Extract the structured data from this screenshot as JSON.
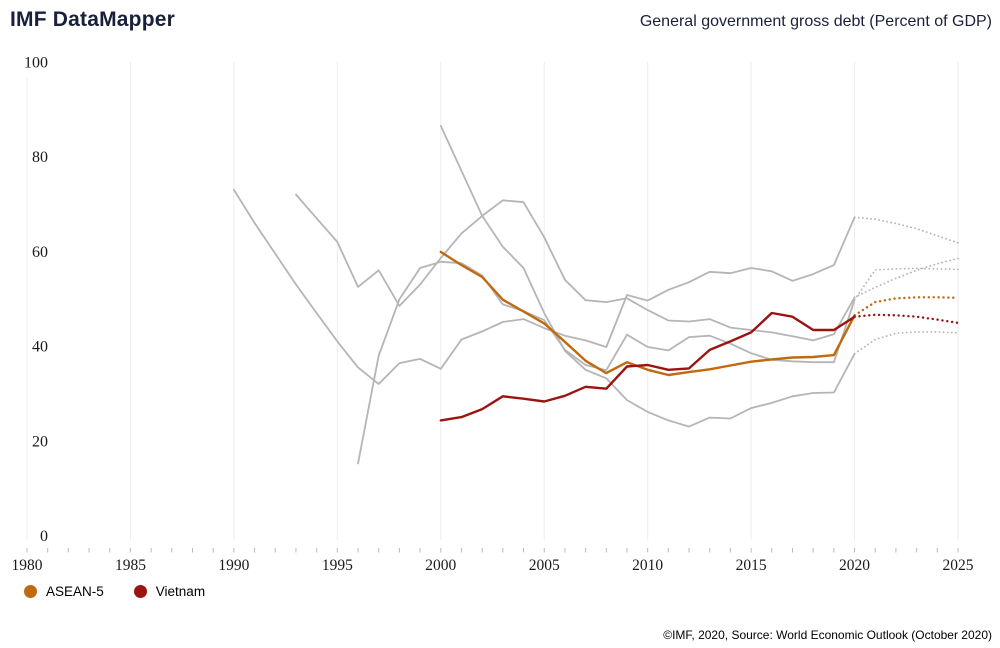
{
  "header": {
    "app_title": "IMF DataMapper"
  },
  "footer": {
    "attribution": "©IMF, 2020, Source: World Economic Outlook (October 2020)"
  },
  "chart_data": {
    "type": "line",
    "title": "General government gross debt (Percent of GDP)",
    "xlabel": "",
    "ylabel": "",
    "x_range": [
      1980,
      2025
    ],
    "y_range": [
      0,
      100
    ],
    "x_ticks": [
      1980,
      1985,
      1990,
      1995,
      2000,
      2005,
      2010,
      2015,
      2020,
      2025
    ],
    "y_ticks": [
      0,
      20,
      40,
      60,
      80,
      100
    ],
    "x_minor_tick_step": 1,
    "grid": "vertical-only",
    "projection_start": 2020,
    "projection_style": "dotted",
    "legend_position": "bottom-left",
    "colors": {
      "grid": "#ededee",
      "tick": "#b9b9b9",
      "axis_text": "#1a1a1a",
      "comparator_gray": "#b5b5b7"
    },
    "series": [
      {
        "name": "comparator-1",
        "highlighted": false,
        "color": "#b5b5b7",
        "start_year": 1990,
        "values": [
          73,
          66,
          59.5,
          53,
          47,
          41,
          35.5,
          32,
          36.4,
          37.3,
          35.2,
          41.4,
          43.1,
          45.1,
          45.7,
          43.8,
          42.2,
          41.2,
          39.8,
          50.8,
          49.6,
          51.9,
          53.5,
          55.7,
          55.4,
          56.5,
          55.8,
          53.8,
          55.2,
          57.1,
          67.2
        ],
        "projection": [
          67.2,
          66.8,
          65.9,
          64.8,
          63.3,
          61.8
        ]
      },
      {
        "name": "comparator-2",
        "highlighted": false,
        "color": "#b5b5b7",
        "start_year": 1993,
        "values": [
          72,
          67,
          62,
          52.5,
          56,
          48.5,
          53,
          58.6,
          63.8,
          67.5,
          70.8,
          70.4,
          63,
          54,
          49.7,
          49.3,
          50.1,
          47.6,
          45.4,
          45.2,
          45.7,
          43.9,
          43.4,
          42.9,
          42.1,
          41.2,
          42.5,
          50.3
        ],
        "projection": [
          50.3,
          52.4,
          54.3,
          56.0,
          57.4,
          58.5
        ]
      },
      {
        "name": "comparator-3",
        "highlighted": false,
        "color": "#b5b5b7",
        "start_year": 1996,
        "values": [
          15.2,
          38,
          49.9,
          56.5,
          57.8,
          57.5,
          54.9,
          48.8,
          47.4,
          45.5,
          39.2,
          36.0,
          34.9,
          42.4,
          39.8,
          39.1,
          41.9,
          42.2,
          40.5,
          38.5,
          37.1,
          36.8,
          36.6,
          36.6,
          49.8
        ],
        "projection": [
          49.8,
          56.1,
          56.3,
          56.4,
          56.3,
          56.2
        ]
      },
      {
        "name": "comparator-4",
        "highlighted": false,
        "color": "#b5b5b7",
        "start_year": 2000,
        "values": [
          86.5,
          77,
          67.5,
          61,
          56.5,
          47,
          39,
          35,
          33.2,
          28.6,
          26.1,
          24.3,
          23,
          24.9,
          24.7,
          26.9,
          28,
          29.4,
          30.1,
          30.2,
          38.4
        ],
        "projection": [
          38.4,
          41.4,
          42.7,
          43.0,
          43.0,
          42.8
        ]
      },
      {
        "name": "ASEAN-5",
        "highlighted": true,
        "color": "#c1690e",
        "start_year": 2000,
        "values": [
          59.9,
          57.1,
          54.6,
          49.8,
          47.3,
          44.8,
          40.9,
          36.9,
          34.3,
          36.6,
          35.0,
          33.9,
          34.5,
          35.1,
          35.9,
          36.7,
          37.2,
          37.6,
          37.7,
          38.1,
          46.5
        ],
        "projection": [
          46.5,
          49.3,
          50.1,
          50.3,
          50.3,
          50.2
        ]
      },
      {
        "name": "Vietnam",
        "highlighted": true,
        "color": "#9c1410",
        "start_year": 2000,
        "values": [
          24.3,
          25.0,
          26.7,
          29.4,
          28.9,
          28.3,
          29.5,
          31.4,
          31.0,
          35.7,
          36.0,
          35.0,
          35.3,
          39.2,
          41.0,
          42.9,
          47.0,
          46.2,
          43.4,
          43.4,
          46.2
        ],
        "projection": [
          46.2,
          46.6,
          46.5,
          46.2,
          45.6,
          44.9
        ]
      }
    ],
    "legend": [
      {
        "label": "ASEAN-5",
        "color": "#c1690e"
      },
      {
        "label": "Vietnam",
        "color": "#9c1410"
      }
    ]
  }
}
